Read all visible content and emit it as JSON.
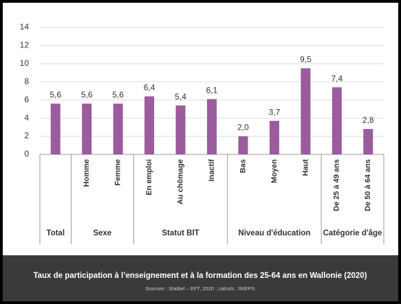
{
  "chart_data": {
    "type": "bar",
    "title": "Taux de participation à l’enseignement et à la formation des 25-64 ans en Wallonie (2020)",
    "subtitle": "Sources : Statbel – EFT, 2020 ; calculs : IWEPS",
    "color": "#9a5c9c",
    "ylim": [
      0,
      14
    ],
    "yticks": [
      0,
      2,
      4,
      6,
      8,
      10,
      12,
      14
    ],
    "grid": true,
    "groups": [
      {
        "label": "Total",
        "categories": [
          null
        ],
        "values": [
          5.6
        ],
        "value_labels": [
          "5,6"
        ]
      },
      {
        "label": "Sexe",
        "categories": [
          "Homme",
          "Femme"
        ],
        "values": [
          5.6,
          5.6
        ],
        "value_labels": [
          "5,6",
          "5,6"
        ]
      },
      {
        "label": "Statut BIT",
        "categories": [
          "En emploi",
          "Au chômage",
          "Inactif"
        ],
        "values": [
          6.4,
          5.4,
          6.1
        ],
        "value_labels": [
          "6,4",
          "5,4",
          "6,1"
        ]
      },
      {
        "label": "Niveau d'éducation",
        "categories": [
          "Bas",
          "Moyen",
          "Haut"
        ],
        "values": [
          2.0,
          3.7,
          9.5
        ],
        "value_labels": [
          "2,0",
          "3,7",
          "9,5"
        ]
      },
      {
        "label": "Catégorie d'âge",
        "categories": [
          "De 25 à 49 ans",
          "De 50 à 64 ans"
        ],
        "values": [
          7.4,
          2.8
        ],
        "value_labels": [
          "7,4",
          "2,8"
        ]
      }
    ]
  }
}
